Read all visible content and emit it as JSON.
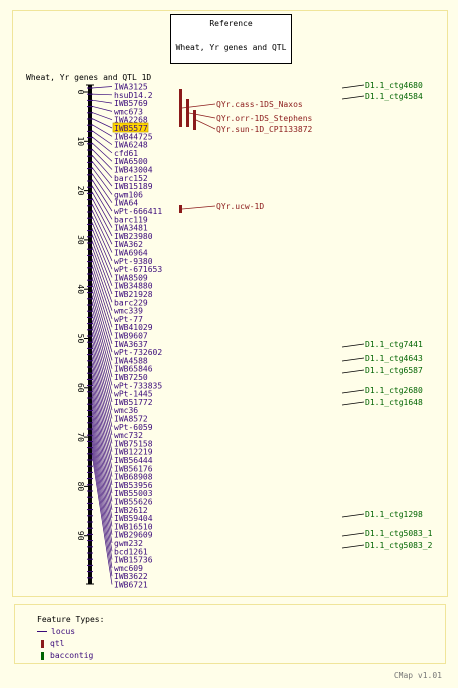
{
  "reference": {
    "label": "Reference",
    "map_name": "Wheat, Yr genes and QTL"
  },
  "map_title": "Wheat, Yr genes and QTL 1D",
  "axis_ticks": [
    "0",
    "10",
    "20",
    "30",
    "40",
    "50",
    "60",
    "70",
    "80",
    "90"
  ],
  "highlighted_marker": "IWB5577",
  "markers": [
    "IWA3125",
    "hsuD14.2",
    "IWB5769",
    "wmc673",
    "IWA2268",
    "IWB5577",
    "IWB44725",
    "IWA6248",
    "cfd61",
    "IWA6500",
    "IWB43004",
    "barc152",
    "IWB15189",
    "gwm106",
    "IWA64",
    "wPt-666411",
    "barc119",
    "IWA3481",
    "IWB23980",
    "IWA362",
    "IWA6964",
    "wPt-9380",
    "wPt-671653",
    "IWA8509",
    "IWB34880",
    "IWB21928",
    "barc229",
    "wmc339",
    "wPt-77",
    "IWB41029",
    "IWB9607",
    "IWA3637",
    "wPt-732602",
    "IWA4588",
    "IWB65846",
    "IWB7250",
    "wPt-733835",
    "wPt-1445",
    "IWB51772",
    "wmc36",
    "IWA8572",
    "wPt-6059",
    "wmc732",
    "IWB75158",
    "IWB12219",
    "IWB56444",
    "IWB56176",
    "IWB68908",
    "IWB53956",
    "IWB55003",
    "IWB55626",
    "IWB2612",
    "IWB59404",
    "IWB16510",
    "IWB29609",
    "gwm232",
    "bcd1261",
    "IWB15736",
    "wmc609",
    "IWB3622",
    "IWB6721"
  ],
  "qtls": [
    "QYr.cass-1DS_Naxos",
    "QYr.orr-1DS_Stephens",
    "QYr.sun-1D_CPI133872",
    "QYr.ucw-1D"
  ],
  "contigs": [
    "D1.1_ctg4680",
    "D1.1_ctg4584",
    "D1.1_ctg7441",
    "D1.1_ctg4643",
    "D1.1_ctg6587",
    "D1.1_ctg2680",
    "D1.1_ctg1648",
    "D1.1_ctg1298",
    "D1.1_ctg5083_1",
    "D1.1_ctg5083_2"
  ],
  "legend": {
    "title": "Feature Types:",
    "locus": "locus",
    "qtl": "qtl",
    "baccontig": "baccontig"
  },
  "colors": {
    "locus": "#3a0a7a",
    "qtl": "#8b1a1a",
    "contig": "#006400",
    "highlight": "#ffd700"
  },
  "version": "CMap v1.01"
}
